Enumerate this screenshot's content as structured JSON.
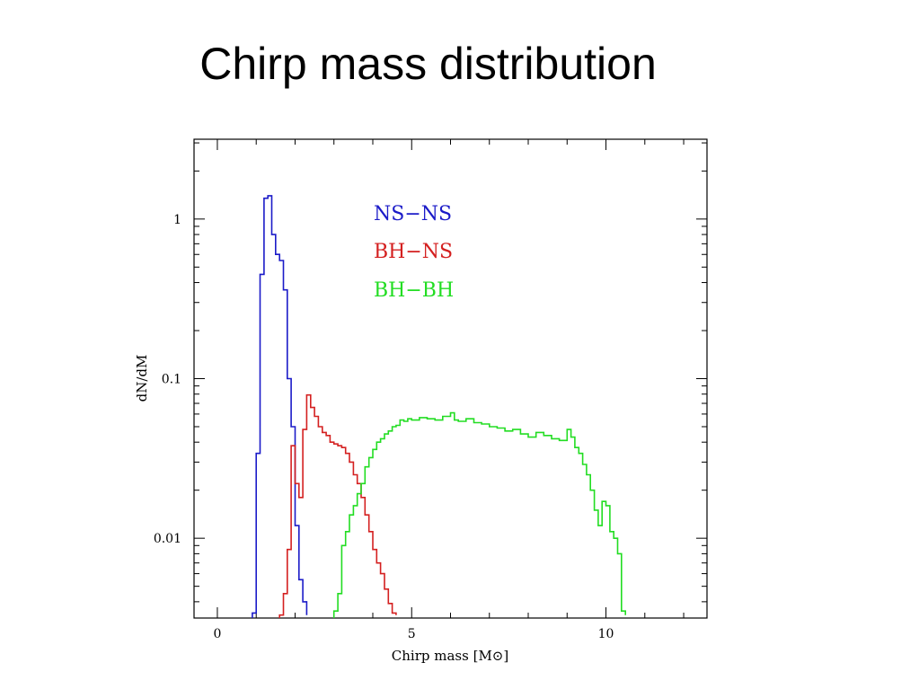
{
  "slide": {
    "title": "Chirp mass distribution"
  },
  "chart_data": {
    "type": "line",
    "step": true,
    "xlabel": "Chirp mass [M⊙]",
    "ylabel": "dN/dM",
    "xlim": [
      -0.6,
      12.6
    ],
    "ylim_log10": [
      -2.5,
      0.5
    ],
    "y_scale": "log",
    "x_ticks": [
      0,
      5,
      10
    ],
    "x_tick_labels": [
      "0",
      "5",
      "10"
    ],
    "y_ticks": [
      0.01,
      0.1,
      1
    ],
    "y_tick_labels": [
      "0.01",
      "0.1",
      "1"
    ],
    "legend_position": "top-center",
    "series": [
      {
        "name": "NS−NS",
        "color": "#1b1bc8",
        "x": [
          0.9,
          1.0,
          1.1,
          1.2,
          1.3,
          1.4,
          1.5,
          1.6,
          1.7,
          1.8,
          1.9,
          2.0,
          2.1,
          2.2,
          2.3
        ],
        "y": [
          0.0034,
          0.034,
          0.45,
          1.35,
          1.4,
          0.8,
          0.6,
          0.55,
          0.36,
          0.1,
          0.05,
          0.012,
          0.0055,
          0.004,
          0.0033
        ]
      },
      {
        "name": "BH−NS",
        "color": "#d42020",
        "x": [
          1.6,
          1.7,
          1.8,
          1.9,
          2.0,
          2.1,
          2.2,
          2.3,
          2.4,
          2.5,
          2.6,
          2.7,
          2.8,
          2.9,
          3.0,
          3.1,
          3.2,
          3.3,
          3.4,
          3.5,
          3.6,
          3.7,
          3.8,
          3.9,
          4.0,
          4.1,
          4.2,
          4.3,
          4.4,
          4.5,
          4.6
        ],
        "y": [
          0.0033,
          0.0045,
          0.0085,
          0.038,
          0.022,
          0.018,
          0.048,
          0.079,
          0.066,
          0.058,
          0.05,
          0.046,
          0.044,
          0.04,
          0.039,
          0.038,
          0.037,
          0.034,
          0.03,
          0.025,
          0.022,
          0.018,
          0.014,
          0.011,
          0.0085,
          0.007,
          0.006,
          0.0048,
          0.0039,
          0.0034,
          0.0033
        ]
      },
      {
        "name": "BH−BH",
        "color": "#22dd22",
        "x": [
          3.0,
          3.1,
          3.2,
          3.3,
          3.4,
          3.5,
          3.6,
          3.7,
          3.8,
          3.9,
          4.0,
          4.1,
          4.2,
          4.3,
          4.4,
          4.5,
          4.6,
          4.7,
          4.8,
          4.9,
          5.0,
          5.2,
          5.4,
          5.6,
          5.8,
          6.0,
          6.1,
          6.2,
          6.4,
          6.6,
          6.8,
          7.0,
          7.2,
          7.4,
          7.6,
          7.8,
          8.0,
          8.2,
          8.4,
          8.6,
          8.8,
          9.0,
          9.1,
          9.2,
          9.3,
          9.4,
          9.5,
          9.6,
          9.7,
          9.8,
          9.9,
          10.0,
          10.1,
          10.2,
          10.3,
          10.4,
          10.5
        ],
        "y": [
          0.0035,
          0.0045,
          0.009,
          0.011,
          0.014,
          0.016,
          0.019,
          0.022,
          0.028,
          0.032,
          0.036,
          0.04,
          0.042,
          0.045,
          0.047,
          0.05,
          0.051,
          0.055,
          0.054,
          0.056,
          0.055,
          0.057,
          0.056,
          0.055,
          0.058,
          0.061,
          0.055,
          0.054,
          0.056,
          0.053,
          0.052,
          0.05,
          0.049,
          0.047,
          0.048,
          0.045,
          0.043,
          0.046,
          0.044,
          0.042,
          0.041,
          0.048,
          0.043,
          0.037,
          0.034,
          0.029,
          0.025,
          0.02,
          0.015,
          0.012,
          0.017,
          0.016,
          0.011,
          0.01,
          0.008,
          0.0035,
          0.0033
        ]
      }
    ]
  }
}
